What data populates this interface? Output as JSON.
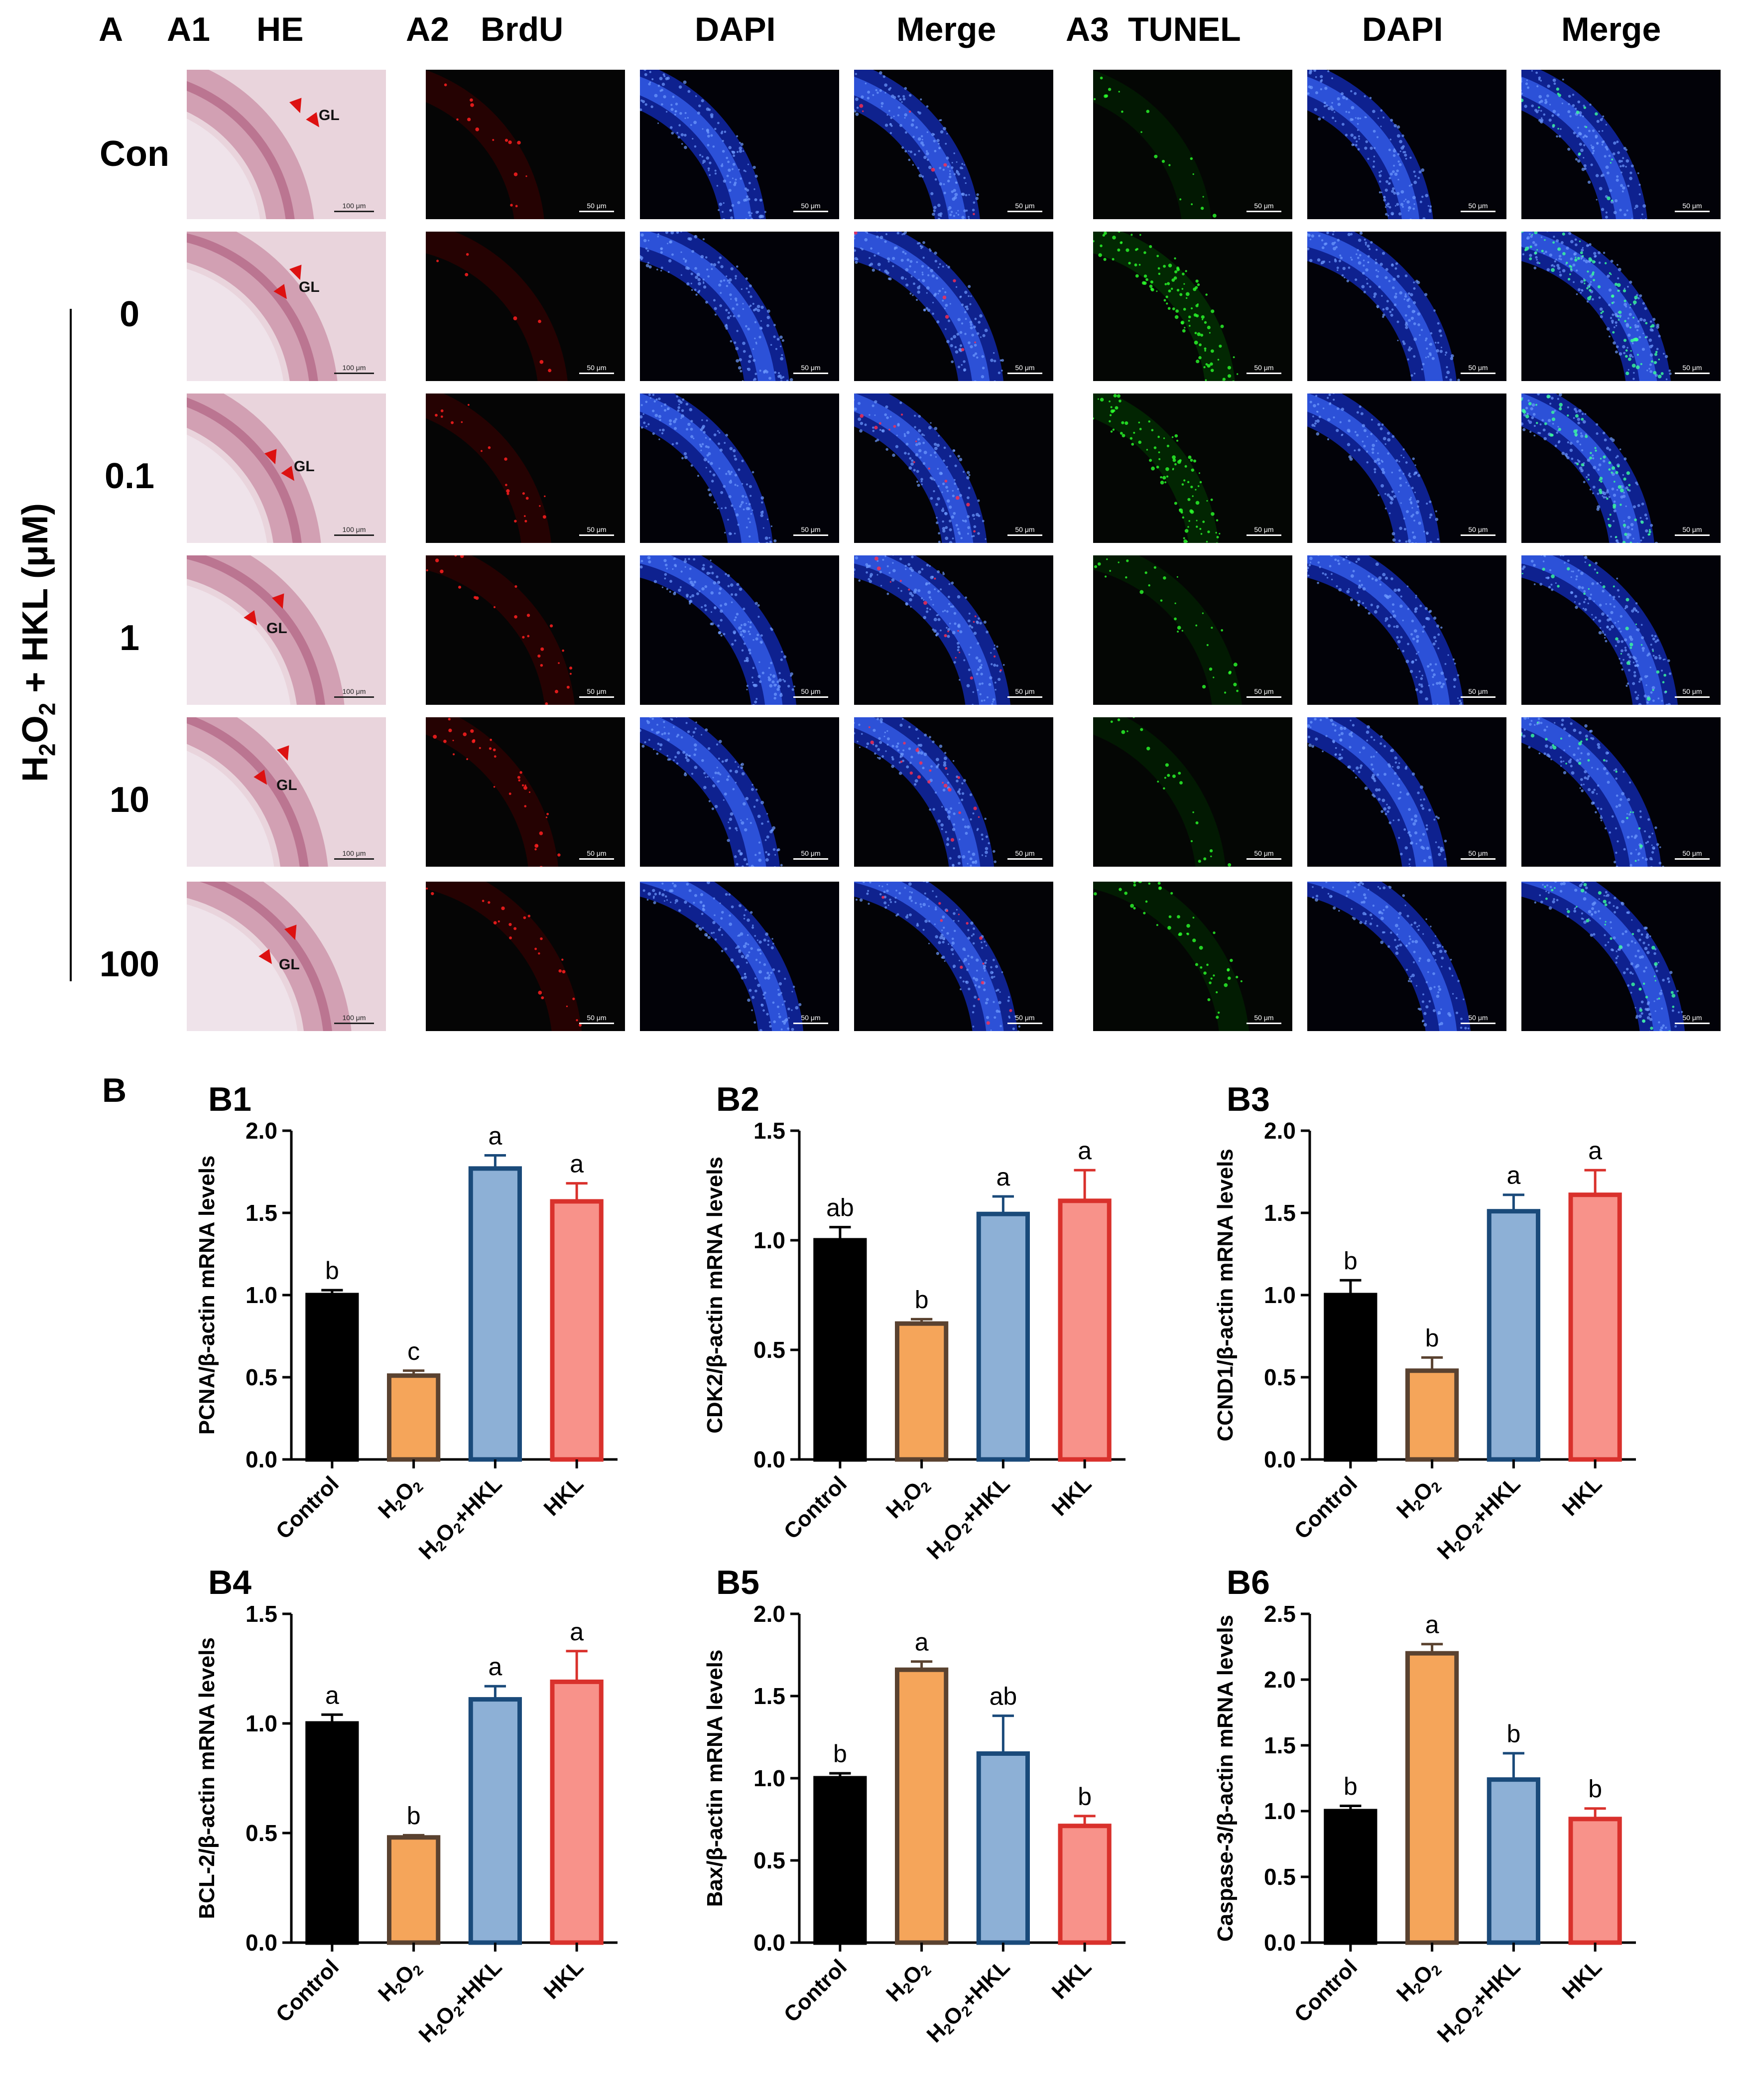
{
  "panelA": {
    "label": "A",
    "a1_label": "A1",
    "he_label": "HE",
    "a2_label": "A2",
    "brdu_label": "BrdU",
    "dapi_label": "DAPI",
    "merge_label": "Merge",
    "a3_label": "A3",
    "tunel_label": "TUNEL",
    "dapi2_label": "DAPI",
    "merge2_label": "Merge",
    "rows": [
      "Con",
      "0",
      "0.1",
      "1",
      "10",
      "100"
    ],
    "group_axis": {
      "h": "H",
      "sub2": "2",
      "o": "O",
      "sub2b": "2",
      "rest": " + HKL (μM)"
    },
    "gl_text": "GL",
    "scale_he": "100 μm",
    "scale_fluor": "50 μm"
  },
  "panelB": {
    "label": "B"
  },
  "colors": {
    "control": "#000000",
    "h2o2": "#F5A55A",
    "h2o2_edge": "#5A4230",
    "h2o2hkl": "#8DB0D6",
    "h2o2hkl_edge": "#1A4A7A",
    "hkl": "#F8928A",
    "hkl_edge": "#D9312C"
  },
  "chart_data": [
    {
      "id": "B1",
      "type": "bar",
      "ylabel": "PCNA/β-actin mRNA levels",
      "categories": [
        "Control",
        "H2O2",
        "H2O2+HKL",
        "HKL"
      ],
      "values": [
        1.0,
        0.51,
        1.77,
        1.57
      ],
      "errors": [
        0.03,
        0.03,
        0.08,
        0.11
      ],
      "letters": [
        "b",
        "c",
        "a",
        "a"
      ],
      "ylim": [
        0,
        2.0
      ],
      "ticks": [
        "0.0",
        "0.5",
        "1.0",
        "1.5",
        "2.0"
      ]
    },
    {
      "id": "B2",
      "type": "bar",
      "ylabel": "CDK2/β-actin mRNA levels",
      "categories": [
        "Control",
        "H2O2",
        "H2O2+HKL",
        "HKL"
      ],
      "values": [
        1.0,
        0.62,
        1.12,
        1.18
      ],
      "errors": [
        0.06,
        0.02,
        0.08,
        0.14
      ],
      "letters": [
        "ab",
        "b",
        "a",
        "a"
      ],
      "ylim": [
        0,
        1.5
      ],
      "ticks": [
        "0.0",
        "0.5",
        "1.0",
        "1.5"
      ]
    },
    {
      "id": "B3",
      "type": "bar",
      "ylabel": "CCND1/β-actin mRNA levels",
      "categories": [
        "Control",
        "H2O2",
        "H2O2+HKL",
        "HKL"
      ],
      "values": [
        1.0,
        0.54,
        1.51,
        1.61
      ],
      "errors": [
        0.09,
        0.08,
        0.1,
        0.15
      ],
      "letters": [
        "b",
        "b",
        "a",
        "a"
      ],
      "ylim": [
        0,
        2.0
      ],
      "ticks": [
        "0.0",
        "0.5",
        "1.0",
        "1.5",
        "2.0"
      ]
    },
    {
      "id": "B4",
      "type": "bar",
      "ylabel": "BCL-2/β-actin mRNA levels",
      "categories": [
        "Control",
        "H2O2",
        "H2O2+HKL",
        "HKL"
      ],
      "values": [
        1.0,
        0.48,
        1.11,
        1.19
      ],
      "errors": [
        0.04,
        0.01,
        0.06,
        0.14
      ],
      "letters": [
        "a",
        "b",
        "a",
        "a"
      ],
      "ylim": [
        0,
        1.5
      ],
      "ticks": [
        "0.0",
        "0.5",
        "1.0",
        "1.5"
      ]
    },
    {
      "id": "B5",
      "type": "bar",
      "ylabel": "Bax/β-actin mRNA levels",
      "categories": [
        "Control",
        "H2O2",
        "H2O2+HKL",
        "HKL"
      ],
      "values": [
        1.0,
        1.66,
        1.15,
        0.71
      ],
      "errors": [
        0.03,
        0.05,
        0.23,
        0.06
      ],
      "letters": [
        "b",
        "a",
        "ab",
        "b"
      ],
      "ylim": [
        0,
        2.0
      ],
      "ticks": [
        "0.0",
        "0.5",
        "1.0",
        "1.5",
        "2.0"
      ]
    },
    {
      "id": "B6",
      "type": "bar",
      "ylabel": "Caspase-3/β-actin mRNA levels",
      "categories": [
        "Control",
        "H2O2",
        "H2O2+HKL",
        "HKL"
      ],
      "values": [
        1.0,
        2.2,
        1.24,
        0.94
      ],
      "errors": [
        0.04,
        0.07,
        0.2,
        0.08
      ],
      "letters": [
        "b",
        "a",
        "b",
        "b"
      ],
      "ylim": [
        0,
        2.5
      ],
      "ticks": [
        "0.0",
        "0.5",
        "1.0",
        "1.5",
        "2.0",
        "2.5"
      ]
    }
  ]
}
